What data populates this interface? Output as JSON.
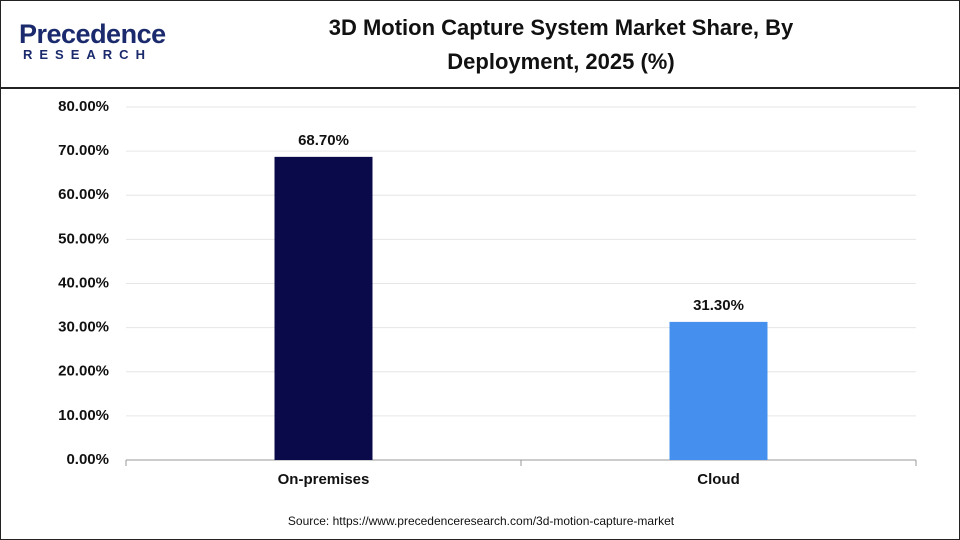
{
  "logo": {
    "name": "Precedence",
    "sub": "RESEARCH"
  },
  "chart_data": {
    "type": "bar",
    "title": "3D Motion Capture System Market Share, By Deployment, 2025 (%)",
    "categories": [
      "On-premises",
      "Cloud"
    ],
    "values": [
      68.7,
      31.3
    ],
    "value_labels": [
      "68.70%",
      "31.30%"
    ],
    "colors": [
      "#0a0a4a",
      "#4590ee"
    ],
    "ylim": [
      0,
      80
    ],
    "yticks": [
      {
        "value": 0,
        "label": "0.00%"
      },
      {
        "value": 10,
        "label": "10.00%"
      },
      {
        "value": 20,
        "label": "20.00%"
      },
      {
        "value": 30,
        "label": "30.00%"
      },
      {
        "value": 40,
        "label": "40.00%"
      },
      {
        "value": 50,
        "label": "50.00%"
      },
      {
        "value": 60,
        "label": "60.00%"
      },
      {
        "value": 70,
        "label": "70.00%"
      },
      {
        "value": 80,
        "label": "80.00%"
      }
    ],
    "grid": true,
    "source": "Source: https://www.precedenceresearch.com/3d-motion-capture-market"
  }
}
